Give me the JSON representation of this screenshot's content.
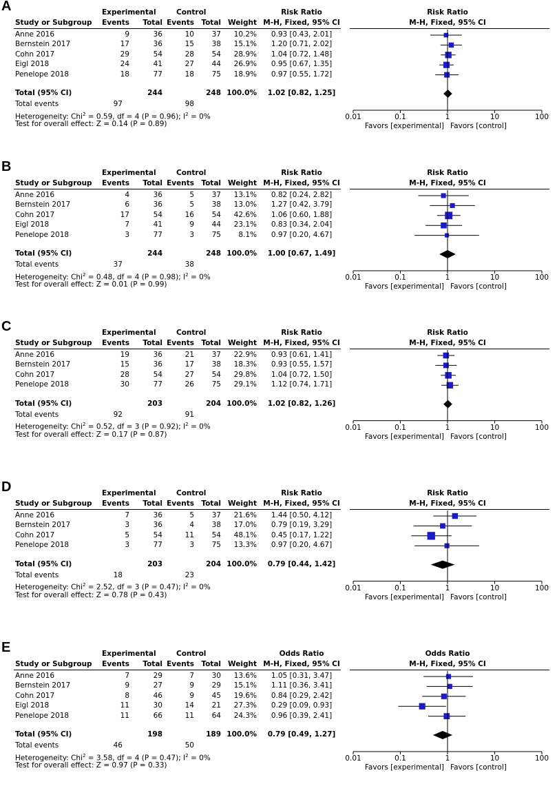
{
  "headers": {
    "study": "Study or Subgroup",
    "experimental": "Experimental",
    "control": "Control",
    "events": "Events",
    "total": "Total",
    "weight": "Weight",
    "method": "M-H, Fixed, 95% CI",
    "total_row": "Total (95% CI)",
    "total_events": "Total events"
  },
  "axis": {
    "ticks": [
      "0.01",
      "0.1",
      "1",
      "10",
      "100"
    ],
    "favors_left": "Favors [experimental]",
    "favors_right": "Favors [control]"
  },
  "colors": {
    "marker": "#1b1bc9",
    "diamond": "#000000",
    "line": "#000000"
  },
  "panels": [
    {
      "label": "A",
      "measure": "Risk Ratio",
      "studies": [
        {
          "name": "Anne 2016",
          "ee": "9",
          "et": "36",
          "ce": "10",
          "ct": "37",
          "w": "10.2%",
          "ci": "0.93 [0.43, 2.01]",
          "est": 0.93,
          "lo": 0.43,
          "hi": 2.01,
          "wt": 10.2
        },
        {
          "name": "Bernstein 2017",
          "ee": "17",
          "et": "36",
          "ce": "15",
          "ct": "38",
          "w": "15.1%",
          "ci": "1.20 [0.71, 2.02]",
          "est": 1.2,
          "lo": 0.71,
          "hi": 2.02,
          "wt": 15.1
        },
        {
          "name": "Cohn 2017",
          "ee": "29",
          "et": "54",
          "ce": "28",
          "ct": "54",
          "w": "28.9%",
          "ci": "1.04 [0.72, 1.48]",
          "est": 1.04,
          "lo": 0.72,
          "hi": 1.48,
          "wt": 28.9
        },
        {
          "name": "Eigl 2018",
          "ee": "24",
          "et": "41",
          "ce": "27",
          "ct": "44",
          "w": "26.9%",
          "ci": "0.95 [0.67, 1.35]",
          "est": 0.95,
          "lo": 0.67,
          "hi": 1.35,
          "wt": 26.9
        },
        {
          "name": "Penelope 2018",
          "ee": "18",
          "et": "77",
          "ce": "18",
          "ct": "75",
          "w": "18.9%",
          "ci": "0.97 [0.55, 1.72]",
          "est": 0.97,
          "lo": 0.55,
          "hi": 1.72,
          "wt": 18.9
        }
      ],
      "total": {
        "et": "244",
        "ct": "248",
        "w": "100.0%",
        "ci": "1.02 [0.82, 1.25]",
        "est": 1.02,
        "lo": 0.82,
        "hi": 1.25
      },
      "events": {
        "e": "97",
        "c": "98"
      },
      "het": {
        "pre": "Heterogeneity: Chi",
        "sup1": "2",
        "mid": " = 0.59, df = 4 (P = 0.96); I",
        "sup2": "2",
        "post": " = 0%"
      },
      "overall": "Test for overall effect: Z = 0.14 (P = 0.89)"
    },
    {
      "label": "B",
      "measure": "Risk Ratio",
      "studies": [
        {
          "name": "Anne 2016",
          "ee": "4",
          "et": "36",
          "ce": "5",
          "ct": "37",
          "w": "13.1%",
          "ci": "0.82 [0.24, 2.82]",
          "est": 0.82,
          "lo": 0.24,
          "hi": 2.82,
          "wt": 13.1
        },
        {
          "name": "Bernstein 2017",
          "ee": "6",
          "et": "36",
          "ce": "5",
          "ct": "38",
          "w": "13.0%",
          "ci": "1.27 [0.42, 3.79]",
          "est": 1.27,
          "lo": 0.42,
          "hi": 3.79,
          "wt": 13.0
        },
        {
          "name": "Cohn 2017",
          "ee": "17",
          "et": "54",
          "ce": "16",
          "ct": "54",
          "w": "42.6%",
          "ci": "1.06 [0.60, 1.88]",
          "est": 1.06,
          "lo": 0.6,
          "hi": 1.88,
          "wt": 42.6
        },
        {
          "name": "Eigl 2018",
          "ee": "7",
          "et": "41",
          "ce": "9",
          "ct": "44",
          "w": "23.1%",
          "ci": "0.83 [0.34, 2.04]",
          "est": 0.83,
          "lo": 0.34,
          "hi": 2.04,
          "wt": 23.1
        },
        {
          "name": "Penelope 2018",
          "ee": "3",
          "et": "77",
          "ce": "3",
          "ct": "75",
          "w": "8.1%",
          "ci": "0.97 [0.20, 4.67]",
          "est": 0.97,
          "lo": 0.2,
          "hi": 4.67,
          "wt": 8.1
        }
      ],
      "total": {
        "et": "244",
        "ct": "248",
        "w": "100.0%",
        "ci": "1.00 [0.67, 1.49]",
        "est": 1.0,
        "lo": 0.67,
        "hi": 1.49
      },
      "events": {
        "e": "37",
        "c": "38"
      },
      "het": {
        "pre": "Heterogeneity: Chi",
        "sup1": "2",
        "mid": " = 0.48, df = 4 (P = 0.98); I",
        "sup2": "2",
        "post": " = 0%"
      },
      "overall": "Test for overall effect: Z = 0.01 (P = 0.99)"
    },
    {
      "label": "C",
      "measure": "Risk Ratio",
      "studies": [
        {
          "name": "Anne 2016",
          "ee": "19",
          "et": "36",
          "ce": "21",
          "ct": "37",
          "w": "22.9%",
          "ci": "0.93 [0.61, 1.41]",
          "est": 0.93,
          "lo": 0.61,
          "hi": 1.41,
          "wt": 22.9
        },
        {
          "name": "Bernstein 2017",
          "ee": "15",
          "et": "36",
          "ce": "17",
          "ct": "38",
          "w": "18.3%",
          "ci": "0.93 [0.55, 1.57]",
          "est": 0.93,
          "lo": 0.55,
          "hi": 1.57,
          "wt": 18.3
        },
        {
          "name": "Cohn 2017",
          "ee": "28",
          "et": "54",
          "ce": "27",
          "ct": "54",
          "w": "29.8%",
          "ci": "1.04 [0.72, 1.50]",
          "est": 1.04,
          "lo": 0.72,
          "hi": 1.5,
          "wt": 29.8
        },
        {
          "name": "Penelope 2018",
          "ee": "30",
          "et": "77",
          "ce": "26",
          "ct": "75",
          "w": "29.1%",
          "ci": "1.12 [0.74, 1.71]",
          "est": 1.12,
          "lo": 0.74,
          "hi": 1.71,
          "wt": 29.1
        }
      ],
      "total": {
        "et": "203",
        "ct": "204",
        "w": "100.0%",
        "ci": "1.02 [0.82, 1.26]",
        "est": 1.02,
        "lo": 0.82,
        "hi": 1.26
      },
      "events": {
        "e": "92",
        "c": "91"
      },
      "het": {
        "pre": "Heterogeneity: Chi",
        "sup1": "2",
        "mid": " = 0.52, df = 3 (P = 0.92); I",
        "sup2": "2",
        "post": " = 0%"
      },
      "overall": "Test for overall effect: Z = 0.17 (P = 0.87)"
    },
    {
      "label": "D",
      "measure": "Risk Ratio",
      "studies": [
        {
          "name": "Anne 2016",
          "ee": "7",
          "et": "36",
          "ce": "5",
          "ct": "37",
          "w": "21.6%",
          "ci": "1.44 [0.50, 4.12]",
          "est": 1.44,
          "lo": 0.5,
          "hi": 4.12,
          "wt": 21.6
        },
        {
          "name": "Bernstein 2017",
          "ee": "3",
          "et": "36",
          "ce": "4",
          "ct": "38",
          "w": "17.0%",
          "ci": "0.79 [0.19, 3.29]",
          "est": 0.79,
          "lo": 0.19,
          "hi": 3.29,
          "wt": 17.0
        },
        {
          "name": "Cohn 2017",
          "ee": "5",
          "et": "54",
          "ce": "11",
          "ct": "54",
          "w": "48.1%",
          "ci": "0.45 [0.17, 1.22]",
          "est": 0.45,
          "lo": 0.17,
          "hi": 1.22,
          "wt": 48.1
        },
        {
          "name": "Penelope 2018",
          "ee": "3",
          "et": "77",
          "ce": "3",
          "ct": "75",
          "w": "13.3%",
          "ci": "0.97 [0.20, 4.67]",
          "est": 0.97,
          "lo": 0.2,
          "hi": 4.67,
          "wt": 13.3
        }
      ],
      "total": {
        "et": "203",
        "ct": "204",
        "w": "100.0%",
        "ci": "0.79 [0.44, 1.42]",
        "est": 0.79,
        "lo": 0.44,
        "hi": 1.42
      },
      "events": {
        "e": "18",
        "c": "23"
      },
      "het": {
        "pre": "Heterogeneity: Chi",
        "sup1": "2",
        "mid": " = 2.52, df = 3 (P = 0.47); I",
        "sup2": "2",
        "post": " = 0%"
      },
      "overall": "Test for overall effect: Z = 0.78 (P = 0.43)"
    },
    {
      "label": "E",
      "measure": "Odds Ratio",
      "studies": [
        {
          "name": "Anne 2016",
          "ee": "7",
          "et": "29",
          "ce": "7",
          "ct": "30",
          "w": "13.6%",
          "ci": "1.05 [0.31, 3.47]",
          "est": 1.05,
          "lo": 0.31,
          "hi": 3.47,
          "wt": 13.6
        },
        {
          "name": "Bernstein 2017",
          "ee": "9",
          "et": "27",
          "ce": "9",
          "ct": "29",
          "w": "15.1%",
          "ci": "1.11 [0.36, 3.41]",
          "est": 1.11,
          "lo": 0.36,
          "hi": 3.41,
          "wt": 15.1
        },
        {
          "name": "Cohn 2017",
          "ee": "8",
          "et": "46",
          "ce": "9",
          "ct": "45",
          "w": "19.6%",
          "ci": "0.84 [0.29, 2.42]",
          "est": 0.84,
          "lo": 0.29,
          "hi": 2.42,
          "wt": 19.6
        },
        {
          "name": "Eigl 2018",
          "ee": "11",
          "et": "30",
          "ce": "14",
          "ct": "21",
          "w": "27.3%",
          "ci": "0.29 [0.09, 0.93]",
          "est": 0.29,
          "lo": 0.09,
          "hi": 0.93,
          "wt": 27.3
        },
        {
          "name": "Penelope 2018",
          "ee": "11",
          "et": "66",
          "ce": "11",
          "ct": "64",
          "w": "24.3%",
          "ci": "0.96 [0.39, 2.41]",
          "est": 0.96,
          "lo": 0.39,
          "hi": 2.41,
          "wt": 24.3
        }
      ],
      "total": {
        "et": "198",
        "ct": "189",
        "w": "100.0%",
        "ci": "0.79 [0.49, 1.27]",
        "est": 0.79,
        "lo": 0.49,
        "hi": 1.27
      },
      "events": {
        "e": "46",
        "c": "50"
      },
      "het": {
        "pre": "Heterogeneity: Chi",
        "sup1": "2",
        "mid": " = 3.58, df = 4 (P = 0.47); I",
        "sup2": "2",
        "post": " = 0%"
      },
      "overall": "Test for overall effect: Z = 0.97 (P = 0.33)"
    }
  ],
  "chart_data": [
    {
      "type": "forest",
      "title": "A",
      "measure": "Risk Ratio (M-H, Fixed, 95% CI)",
      "scale": "log",
      "xlim": [
        0.01,
        100
      ],
      "categories": [
        "Anne 2016",
        "Bernstein 2017",
        "Cohn 2017",
        "Eigl 2018",
        "Penelope 2018",
        "Total (95% CI)"
      ],
      "values": [
        0.93,
        1.2,
        1.04,
        0.95,
        0.97,
        1.02
      ],
      "lower": [
        0.43,
        0.71,
        0.72,
        0.67,
        0.55,
        0.82
      ],
      "upper": [
        2.01,
        2.02,
        1.48,
        1.35,
        1.72,
        1.25
      ]
    },
    {
      "type": "forest",
      "title": "B",
      "measure": "Risk Ratio (M-H, Fixed, 95% CI)",
      "scale": "log",
      "xlim": [
        0.01,
        100
      ],
      "categories": [
        "Anne 2016",
        "Bernstein 2017",
        "Cohn 2017",
        "Eigl 2018",
        "Penelope 2018",
        "Total (95% CI)"
      ],
      "values": [
        0.82,
        1.27,
        1.06,
        0.83,
        0.97,
        1.0
      ],
      "lower": [
        0.24,
        0.42,
        0.6,
        0.34,
        0.2,
        0.67
      ],
      "upper": [
        2.82,
        3.79,
        1.88,
        2.04,
        4.67,
        1.49
      ]
    },
    {
      "type": "forest",
      "title": "C",
      "measure": "Risk Ratio (M-H, Fixed, 95% CI)",
      "scale": "log",
      "xlim": [
        0.01,
        100
      ],
      "categories": [
        "Anne 2016",
        "Bernstein 2017",
        "Cohn 2017",
        "Penelope 2018",
        "Total (95% CI)"
      ],
      "values": [
        0.93,
        0.93,
        1.04,
        1.12,
        1.02
      ],
      "lower": [
        0.61,
        0.55,
        0.72,
        0.74,
        0.82
      ],
      "upper": [
        1.41,
        1.57,
        1.5,
        1.71,
        1.26
      ]
    },
    {
      "type": "forest",
      "title": "D",
      "measure": "Risk Ratio (M-H, Fixed, 95% CI)",
      "scale": "log",
      "xlim": [
        0.01,
        100
      ],
      "categories": [
        "Anne 2016",
        "Bernstein 2017",
        "Cohn 2017",
        "Penelope 2018",
        "Total (95% CI)"
      ],
      "values": [
        1.44,
        0.79,
        0.45,
        0.97,
        0.79
      ],
      "lower": [
        0.5,
        0.19,
        0.17,
        0.2,
        0.44
      ],
      "upper": [
        4.12,
        3.29,
        1.22,
        4.67,
        1.42
      ]
    },
    {
      "type": "forest",
      "title": "E",
      "measure": "Odds Ratio (M-H, Fixed, 95% CI)",
      "scale": "log",
      "xlim": [
        0.01,
        100
      ],
      "categories": [
        "Anne 2016",
        "Bernstein 2017",
        "Cohn 2017",
        "Eigl 2018",
        "Penelope 2018",
        "Total (95% CI)"
      ],
      "values": [
        1.05,
        1.11,
        0.84,
        0.29,
        0.96,
        0.79
      ],
      "lower": [
        0.31,
        0.36,
        0.29,
        0.09,
        0.39,
        0.49
      ],
      "upper": [
        3.47,
        3.41,
        2.42,
        0.93,
        2.41,
        1.27
      ]
    }
  ]
}
